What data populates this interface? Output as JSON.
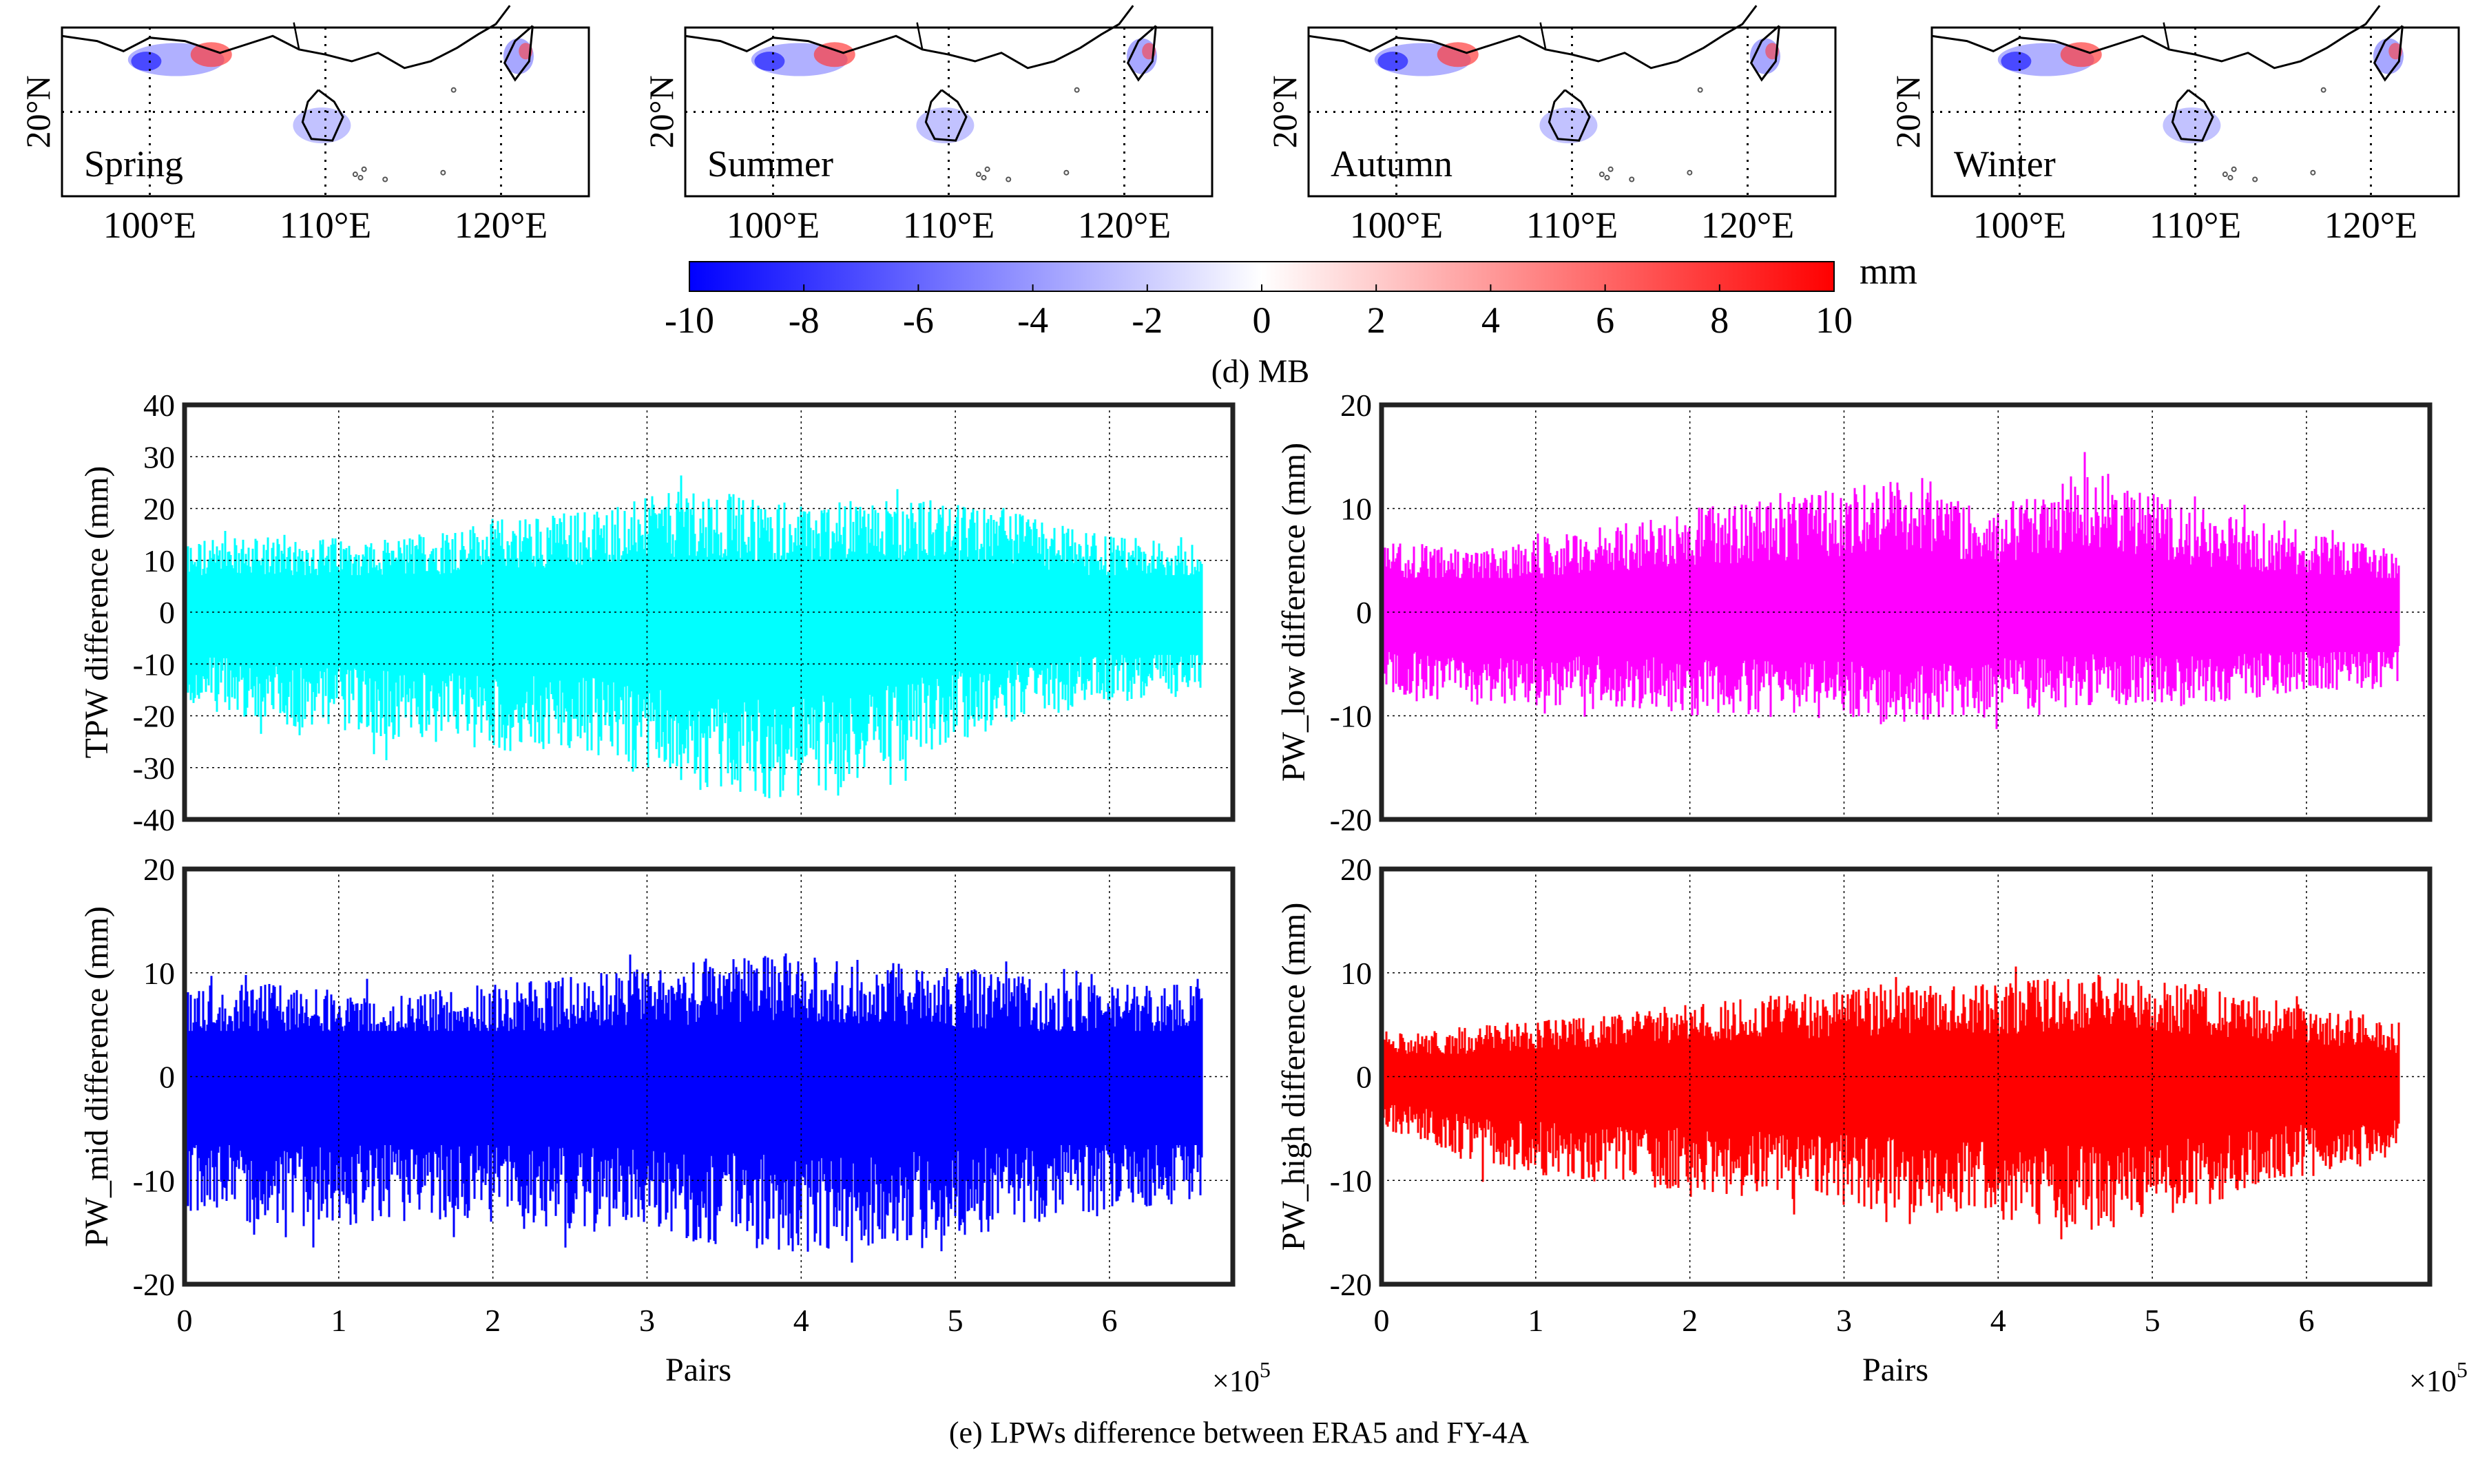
{
  "chart_data": [
    {
      "type": "heatmap",
      "subtype": "map",
      "panel_label": "Spring",
      "lat_tick_labels": [
        "20°N"
      ],
      "lon_tick_labels": [
        "100°E",
        "110°E",
        "120°E"
      ],
      "lon_range": [
        95,
        125
      ],
      "lat_range": [
        15,
        25
      ]
    },
    {
      "type": "heatmap",
      "subtype": "map",
      "panel_label": "Summer",
      "lat_tick_labels": [
        "20°N"
      ],
      "lon_tick_labels": [
        "100°E",
        "110°E",
        "120°E"
      ],
      "lon_range": [
        95,
        125
      ],
      "lat_range": [
        15,
        25
      ]
    },
    {
      "type": "heatmap",
      "subtype": "map",
      "panel_label": "Autumn",
      "lat_tick_labels": [
        "20°N"
      ],
      "lon_tick_labels": [
        "100°E",
        "110°E",
        "120°E"
      ],
      "lon_range": [
        95,
        125
      ],
      "lat_range": [
        15,
        25
      ]
    },
    {
      "type": "heatmap",
      "subtype": "map",
      "panel_label": "Winter",
      "lat_tick_labels": [
        "20°N"
      ],
      "lon_tick_labels": [
        "100°E",
        "110°E",
        "120°E"
      ],
      "lon_range": [
        95,
        125
      ],
      "lat_range": [
        15,
        25
      ]
    },
    {
      "type": "colorbar",
      "unit": "mm",
      "range": [
        -10,
        10
      ],
      "tick_labels": [
        "-10",
        "-8",
        "-6",
        "-4",
        "-2",
        "0",
        "2",
        "4",
        "6",
        "8",
        "10"
      ],
      "colors": {
        "low": "#0000ff",
        "mid": "#ffffff",
        "high": "#ff0000"
      },
      "caption": "(d) MB"
    },
    {
      "type": "scatter",
      "ylabel": "TPW difference (mm)",
      "xlabel": "",
      "xlim": [
        0,
        6.8
      ],
      "ylim": [
        -40,
        40
      ],
      "yticks": [
        "40",
        "30",
        "20",
        "10",
        "0",
        "-10",
        "-20",
        "-30",
        "-40"
      ],
      "xticks": [],
      "grid": true,
      "color": "#00ffff",
      "n_points_approx": 660000,
      "x_max": 6.6,
      "band_upper": [
        14,
        15,
        14,
        18,
        20,
        24,
        21,
        22,
        20,
        15,
        13
      ],
      "band_lower": [
        -18,
        -22,
        -25,
        -27,
        -28,
        -35,
        -37,
        -30,
        -22,
        -18,
        -15
      ]
    },
    {
      "type": "scatter",
      "ylabel": "PW_low difference (mm)",
      "xlabel": "",
      "xlim": [
        0,
        6.8
      ],
      "ylim": [
        -20,
        20
      ],
      "yticks": [
        "20",
        "10",
        "0",
        "-10",
        "-20"
      ],
      "xticks": [],
      "grid": true,
      "color": "#ff00ff",
      "n_points_approx": 660000,
      "x_max": 6.6,
      "band_upper": [
        7,
        6,
        8,
        10,
        11,
        13,
        10,
        14,
        10,
        8,
        6
      ],
      "band_lower": [
        -8,
        -9,
        -9,
        -10,
        -10,
        -11,
        -10,
        -9,
        -9,
        -8,
        -7
      ]
    },
    {
      "type": "scatter",
      "ylabel": "PW_mid difference (mm)",
      "xlabel": "Pairs",
      "xlim": [
        0,
        6.8
      ],
      "ylim": [
        -20,
        20
      ],
      "yticks": [
        "20",
        "10",
        "0",
        "-10",
        "-20"
      ],
      "xticks": [
        "0",
        "1",
        "2",
        "3",
        "4",
        "5",
        "6"
      ],
      "x_multiplier": "×10",
      "x_exponent": "5",
      "grid": true,
      "color": "#0000ff",
      "n_points_approx": 660000,
      "x_max": 6.6,
      "band_upper": [
        9,
        9,
        8,
        9,
        10,
        11,
        12,
        11,
        10,
        9,
        9
      ],
      "band_lower": [
        -13,
        -15,
        -14,
        -14,
        -15,
        -16,
        -17,
        -16,
        -15,
        -13,
        -12
      ]
    },
    {
      "type": "scatter",
      "ylabel": "PW_high difference (mm)",
      "xlabel": "Pairs",
      "xlim": [
        0,
        6.8
      ],
      "ylim": [
        -20,
        20
      ],
      "yticks": [
        "20",
        "10",
        "0",
        "-10",
        "-20"
      ],
      "xticks": [
        "0",
        "1",
        "2",
        "3",
        "4",
        "5",
        "6"
      ],
      "x_multiplier": "×10",
      "x_exponent": "5",
      "grid": true,
      "color": "#ff0000",
      "n_points_approx": 660000,
      "x_max": 6.6,
      "band_upper": [
        4,
        5,
        6,
        7,
        8,
        9,
        9,
        10,
        9,
        7,
        5
      ],
      "band_lower": [
        -5,
        -9,
        -10,
        -11,
        -12,
        -13,
        -14,
        -15,
        -13,
        -10,
        -8
      ]
    }
  ],
  "caption_e": "(e) LPWs difference between ERA5 and FY-4A"
}
